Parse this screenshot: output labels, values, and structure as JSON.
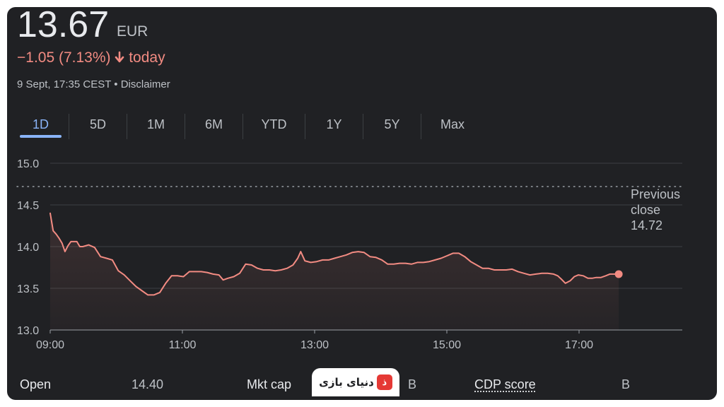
{
  "quote": {
    "price": "13.67",
    "currency": "EUR",
    "change_text": "−1.05 (7.13%)",
    "change_suffix": "today",
    "timestamp": "9 Sept, 17:35 CEST • Disclaimer"
  },
  "tabs": [
    {
      "label": "1D",
      "active": true
    },
    {
      "label": "5D",
      "active": false
    },
    {
      "label": "1M",
      "active": false
    },
    {
      "label": "6M",
      "active": false
    },
    {
      "label": "YTD",
      "active": false
    },
    {
      "label": "1Y",
      "active": false
    },
    {
      "label": "5Y",
      "active": false
    },
    {
      "label": "Max",
      "active": false
    }
  ],
  "colors": {
    "line": "#f28b82",
    "background": "#202124",
    "grid": "#3c4043",
    "accent": "#8ab4f8"
  },
  "previous_close": {
    "label_line1": "Previous",
    "label_line2": "close",
    "value": "14.72"
  },
  "stats": {
    "open_label": "Open",
    "open_value": "14.40",
    "mktcap_label": "Mkt cap",
    "mktcap_value_tail": "B",
    "cdp_label": "CDP score",
    "cdp_value": "B"
  },
  "watermark": {
    "text": "دنیای بازی",
    "mark": "ذ"
  },
  "chart_data": {
    "type": "line",
    "x_unit": "time (CEST)",
    "ylim": [
      13.0,
      15.0
    ],
    "y_ticks": [
      "13.0",
      "13.5",
      "14.0",
      "14.5",
      "15.0"
    ],
    "x_ticks": [
      {
        "label": "09:00",
        "hour": 9
      },
      {
        "label": "11:00",
        "hour": 11
      },
      {
        "label": "13:00",
        "hour": 13
      },
      {
        "label": "15:00",
        "hour": 15
      },
      {
        "label": "17:00",
        "hour": 17
      }
    ],
    "x_range_hours": [
      9,
      17.6
    ],
    "reference_line": {
      "value": 14.72,
      "style": "dotted"
    },
    "grid": true,
    "series": [
      {
        "points": [
          [
            9.0,
            14.4
          ],
          [
            9.05,
            14.19
          ],
          [
            9.1,
            14.15
          ],
          [
            9.15,
            14.1
          ],
          [
            9.2,
            14.04
          ],
          [
            9.25,
            13.94
          ],
          [
            9.3,
            14.01
          ],
          [
            9.35,
            14.06
          ],
          [
            9.4,
            14.06
          ],
          [
            9.45,
            14.06
          ],
          [
            9.5,
            14.0
          ],
          [
            9.55,
            14.0
          ],
          [
            9.65,
            14.02
          ],
          [
            9.75,
            13.99
          ],
          [
            9.85,
            13.88
          ],
          [
            9.95,
            13.86
          ],
          [
            10.05,
            13.84
          ],
          [
            10.15,
            13.71
          ],
          [
            10.25,
            13.66
          ],
          [
            10.35,
            13.59
          ],
          [
            10.45,
            13.52
          ],
          [
            10.55,
            13.47
          ],
          [
            10.65,
            13.42
          ],
          [
            10.75,
            13.42
          ],
          [
            10.85,
            13.45
          ],
          [
            10.95,
            13.56
          ],
          [
            11.05,
            13.65
          ],
          [
            11.15,
            13.65
          ],
          [
            11.25,
            13.64
          ],
          [
            11.35,
            13.7
          ],
          [
            11.45,
            13.7
          ],
          [
            11.55,
            13.7
          ],
          [
            11.65,
            13.69
          ],
          [
            11.75,
            13.67
          ],
          [
            11.85,
            13.66
          ],
          [
            11.92,
            13.6
          ],
          [
            12.0,
            13.62
          ],
          [
            12.1,
            13.64
          ],
          [
            12.2,
            13.68
          ],
          [
            12.3,
            13.79
          ],
          [
            12.4,
            13.78
          ],
          [
            12.5,
            13.74
          ],
          [
            12.6,
            13.72
          ],
          [
            12.7,
            13.72
          ],
          [
            12.8,
            13.71
          ],
          [
            12.9,
            13.72
          ],
          [
            13.0,
            13.74
          ],
          [
            13.1,
            13.78
          ],
          [
            13.18,
            13.86
          ],
          [
            13.23,
            13.94
          ],
          [
            13.3,
            13.83
          ],
          [
            13.4,
            13.81
          ],
          [
            13.5,
            13.82
          ],
          [
            13.6,
            13.84
          ],
          [
            13.7,
            13.84
          ],
          [
            13.8,
            13.86
          ],
          [
            13.9,
            13.88
          ],
          [
            14.0,
            13.9
          ],
          [
            14.1,
            13.93
          ],
          [
            14.2,
            13.94
          ],
          [
            14.3,
            13.93
          ],
          [
            14.4,
            13.88
          ],
          [
            14.5,
            13.87
          ],
          [
            14.6,
            13.84
          ],
          [
            14.7,
            13.79
          ],
          [
            14.8,
            13.79
          ],
          [
            14.9,
            13.8
          ],
          [
            15.0,
            13.8
          ],
          [
            15.1,
            13.79
          ],
          [
            15.2,
            13.81
          ],
          [
            15.3,
            13.81
          ],
          [
            15.4,
            13.82
          ],
          [
            15.5,
            13.84
          ],
          [
            15.6,
            13.86
          ],
          [
            15.7,
            13.89
          ],
          [
            15.8,
            13.92
          ],
          [
            15.9,
            13.92
          ],
          [
            16.0,
            13.88
          ],
          [
            16.1,
            13.82
          ],
          [
            16.2,
            13.78
          ],
          [
            16.3,
            13.74
          ],
          [
            16.4,
            13.74
          ],
          [
            16.5,
            13.72
          ],
          [
            16.6,
            13.72
          ],
          [
            16.7,
            13.72
          ],
          [
            16.8,
            13.73
          ],
          [
            16.9,
            13.7
          ],
          [
            17.0,
            13.68
          ],
          [
            17.1,
            13.66
          ],
          [
            17.2,
            13.67
          ],
          [
            17.3,
            13.68
          ],
          [
            17.4,
            13.68
          ],
          [
            17.5,
            13.67
          ],
          [
            17.57,
            13.65
          ],
          [
            17.63,
            13.61
          ],
          [
            17.7,
            13.56
          ],
          [
            17.78,
            13.59
          ],
          [
            17.85,
            13.64
          ],
          [
            17.92,
            13.66
          ],
          [
            18.0,
            13.65
          ],
          [
            18.08,
            13.62
          ],
          [
            18.15,
            13.62
          ],
          [
            18.22,
            13.63
          ],
          [
            18.3,
            13.63
          ],
          [
            18.38,
            13.65
          ],
          [
            18.45,
            13.67
          ],
          [
            18.52,
            13.67
          ],
          [
            18.6,
            13.67
          ]
        ]
      }
    ]
  }
}
